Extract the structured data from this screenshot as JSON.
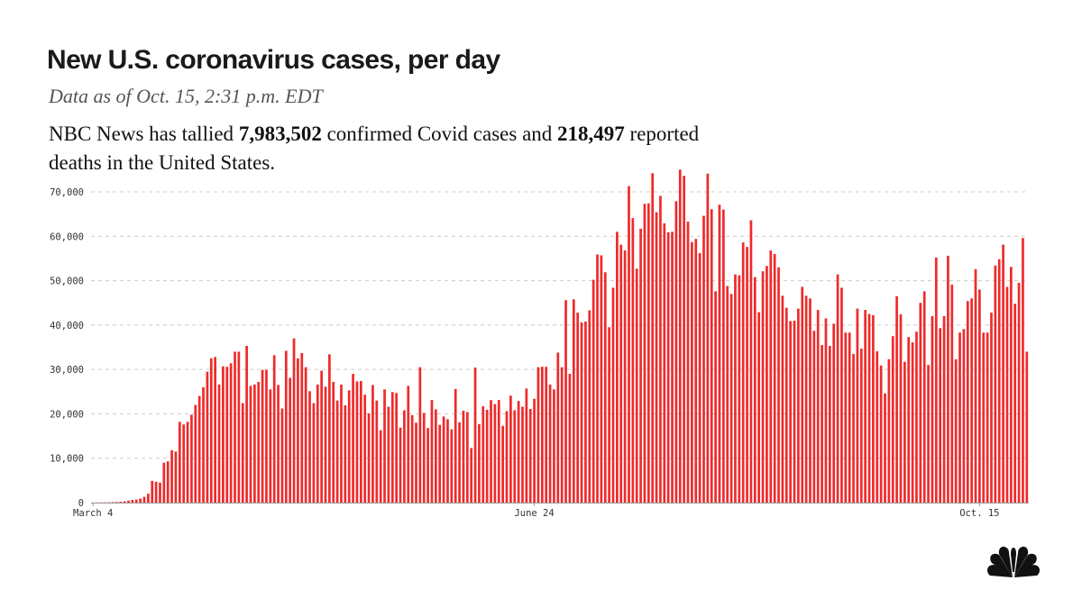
{
  "header": {
    "title": "New U.S. coronavirus cases, per day",
    "subtitle": "Data as of Oct. 15, 2:31 p.m. EDT",
    "summary_prefix": "NBC News has tallied ",
    "cases_total": "7,983,502",
    "summary_middle": " confirmed Covid cases and ",
    "deaths_total": "218,497",
    "summary_suffix": " reported deaths in the United States."
  },
  "colors": {
    "bar": "#ee2b2b",
    "grid": "#cccccc",
    "axis": "#999999"
  },
  "logo": {
    "icon": "nbc-peacock-icon"
  },
  "chart_data": {
    "type": "bar",
    "title": "New U.S. coronavirus cases, per day",
    "x_start": "March 4",
    "x_end": "Oct. 15",
    "x_ticks": [
      {
        "label": "March 4",
        "index": 0
      },
      {
        "label": "June 24",
        "index": 112
      },
      {
        "label": "Oct. 15",
        "index": 225
      }
    ],
    "y_ticks": [
      {
        "label": "0",
        "value": 0
      },
      {
        "label": "10,000",
        "value": 10000
      },
      {
        "label": "20,000",
        "value": 20000
      },
      {
        "label": "30,000",
        "value": 30000
      },
      {
        "label": "40,000",
        "value": 40000
      },
      {
        "label": "50,000",
        "value": 50000
      },
      {
        "label": "60,000",
        "value": 60000
      },
      {
        "label": "70,000",
        "value": 70000
      }
    ],
    "ylim": [
      0,
      72000
    ],
    "grid": true,
    "values": [
      30,
      40,
      50,
      60,
      80,
      100,
      150,
      200,
      300,
      450,
      600,
      700,
      900,
      1300,
      2000,
      4900,
      4700,
      4500,
      9000,
      9300,
      11800,
      11500,
      18200,
      17600,
      18200,
      19800,
      22000,
      24000,
      26000,
      29500,
      32500,
      32800,
      26600,
      30700,
      30600,
      31400,
      34000,
      34000,
      22400,
      35300,
      26300,
      26600,
      27200,
      29900,
      29900,
      25500,
      33200,
      26500,
      21200,
      34200,
      28100,
      37000,
      32500,
      33700,
      30500,
      25100,
      22400,
      26600,
      29700,
      26100,
      33400,
      27200,
      23000,
      26600,
      21900,
      25300,
      29000,
      27300,
      27400,
      24300,
      20100,
      26500,
      23000,
      16300,
      25500,
      21600,
      24900,
      24700,
      16900,
      20800,
      26300,
      19700,
      18000,
      30500,
      20200,
      16800,
      23100,
      21000,
      17500,
      19400,
      18800,
      16500,
      25600,
      18100,
      20700,
      20400,
      12300,
      30400,
      17700,
      21700,
      20900,
      23100,
      22200,
      23100,
      17300,
      20600,
      24100,
      20800,
      22900,
      21600,
      25700,
      21100,
      23400,
      30500,
      30600,
      30600,
      26600,
      25500,
      33800,
      30500,
      45600,
      29000,
      45800,
      42800,
      40600,
      40800,
      43300,
      50200,
      55900,
      55700,
      51900,
      39500,
      48400,
      61000,
      58100,
      56800,
      71300,
      64100,
      52700,
      61700,
      67300,
      67400,
      74200,
      65400,
      69100,
      62900,
      60900,
      61000,
      67900,
      75000,
      73600,
      63300,
      58700,
      59400,
      56200,
      64600,
      74100,
      66100,
      47600,
      67100,
      66000,
      48800,
      47000,
      51400,
      51200,
      58600,
      57600,
      63600,
      50800,
      42900,
      52100,
      53300,
      56800,
      56000,
      53000,
      46600,
      43900,
      40900,
      41000,
      43700,
      48600,
      46600,
      46000,
      38700,
      43400,
      35500,
      41500,
      35300,
      40300,
      51400,
      48400,
      38300,
      38300,
      33500,
      43700,
      34700,
      43400,
      42500,
      42200,
      34100,
      30900,
      24600,
      32300,
      37500,
      46500,
      42400,
      31700,
      37300,
      36100,
      38500,
      45000,
      47600,
      31000,
      42000,
      55200,
      39300,
      42000,
      55600,
      49100,
      32300,
      38300,
      39100,
      45400,
      46000,
      52600,
      48000,
      38300,
      38300,
      42800,
      53400,
      54800,
      58100,
      48600,
      53100,
      44800,
      49500,
      59600,
      34000
    ]
  }
}
